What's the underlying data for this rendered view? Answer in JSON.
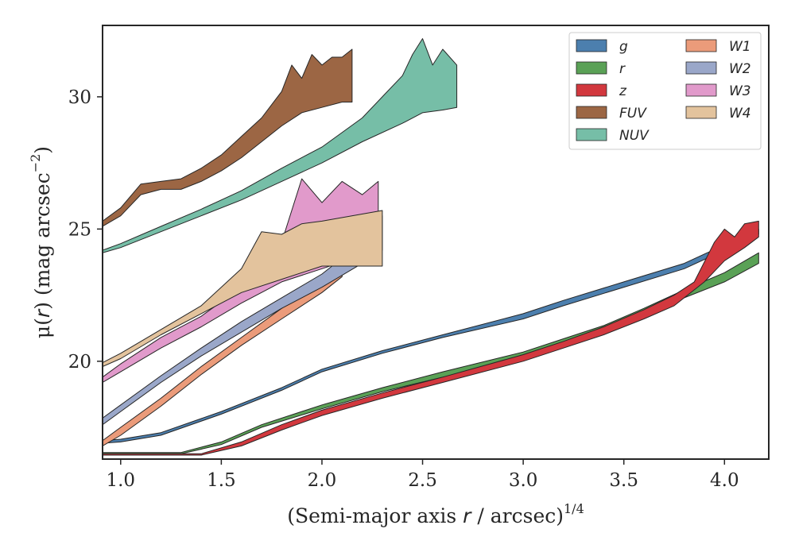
{
  "chart_data": {
    "type": "area",
    "xlabel_prefix": "(Semi-major axis ",
    "xlabel_var": "r",
    "xlabel_suffix": " / arcsec)",
    "xlabel_sup": "1/4",
    "ylabel_prefix": "μ(",
    "ylabel_var": "r",
    "ylabel_suffix": ") (mag arcsec",
    "ylabel_sup": "−2",
    "ylabel_close": ")",
    "xlim": [
      0.91,
      4.22
    ],
    "ylim": [
      32.7,
      16.3
    ],
    "xticks": [
      1.0,
      1.5,
      2.0,
      2.5,
      3.0,
      3.5,
      4.0
    ],
    "xtick_labels": [
      "1.0",
      "1.5",
      "2.0",
      "2.5",
      "3.0",
      "3.5",
      "4.0"
    ],
    "yticks": [
      20,
      25,
      30
    ],
    "ytick_labels": [
      "20",
      "25",
      "30"
    ],
    "legend_position": "top-right",
    "legend_columns": 2,
    "series": [
      {
        "name": "g",
        "color": "#4c7fae",
        "upper": [
          [
            0.91,
            16.9
          ],
          [
            1.0,
            16.95
          ],
          [
            1.2,
            17.2
          ],
          [
            1.5,
            18.0
          ],
          [
            1.8,
            18.9
          ],
          [
            2.0,
            19.6
          ],
          [
            2.3,
            20.3
          ],
          [
            2.6,
            20.9
          ],
          [
            3.0,
            21.6
          ],
          [
            3.2,
            22.1
          ],
          [
            3.5,
            22.8
          ],
          [
            3.8,
            23.5
          ],
          [
            4.0,
            24.2
          ],
          [
            4.1,
            24.6
          ],
          [
            4.17,
            24.8
          ]
        ],
        "lower": [
          [
            0.91,
            17.0
          ],
          [
            1.0,
            17.05
          ],
          [
            1.2,
            17.3
          ],
          [
            1.5,
            18.1
          ],
          [
            1.8,
            19.0
          ],
          [
            2.0,
            19.7
          ],
          [
            2.3,
            20.4
          ],
          [
            2.6,
            21.0
          ],
          [
            3.0,
            21.8
          ],
          [
            3.2,
            22.3
          ],
          [
            3.5,
            23.0
          ],
          [
            3.8,
            23.7
          ],
          [
            4.0,
            24.4
          ],
          [
            4.1,
            24.85
          ],
          [
            4.17,
            25.0
          ]
        ]
      },
      {
        "name": "r",
        "color": "#5aa156",
        "upper": [
          [
            0.91,
            16.5
          ],
          [
            1.3,
            16.5
          ],
          [
            1.5,
            16.85
          ],
          [
            1.7,
            17.5
          ],
          [
            2.0,
            18.2
          ],
          [
            2.3,
            18.85
          ],
          [
            2.6,
            19.4
          ],
          [
            3.0,
            20.1
          ],
          [
            3.2,
            20.6
          ],
          [
            3.4,
            21.1
          ],
          [
            3.6,
            21.7
          ],
          [
            3.8,
            22.4
          ],
          [
            4.0,
            23.0
          ],
          [
            4.17,
            23.7
          ]
        ],
        "lower": [
          [
            0.91,
            16.55
          ],
          [
            1.3,
            16.55
          ],
          [
            1.5,
            16.95
          ],
          [
            1.7,
            17.6
          ],
          [
            2.0,
            18.35
          ],
          [
            2.3,
            19.0
          ],
          [
            2.6,
            19.6
          ],
          [
            3.0,
            20.35
          ],
          [
            3.2,
            20.85
          ],
          [
            3.4,
            21.35
          ],
          [
            3.6,
            22.0
          ],
          [
            3.8,
            22.7
          ],
          [
            4.0,
            23.35
          ],
          [
            4.17,
            24.1
          ]
        ]
      },
      {
        "name": "z",
        "color": "#d2383e",
        "upper": [
          [
            0.91,
            16.45
          ],
          [
            1.4,
            16.45
          ],
          [
            1.6,
            16.8
          ],
          [
            1.8,
            17.4
          ],
          [
            2.0,
            17.95
          ],
          [
            2.3,
            18.6
          ],
          [
            2.6,
            19.2
          ],
          [
            3.0,
            20.0
          ],
          [
            3.2,
            20.5
          ],
          [
            3.4,
            21.0
          ],
          [
            3.6,
            21.6
          ],
          [
            3.75,
            22.1
          ],
          [
            3.9,
            23.0
          ],
          [
            4.0,
            23.8
          ],
          [
            4.1,
            24.3
          ],
          [
            4.17,
            24.7
          ]
        ],
        "lower": [
          [
            0.91,
            16.5
          ],
          [
            1.4,
            16.5
          ],
          [
            1.6,
            16.95
          ],
          [
            1.8,
            17.6
          ],
          [
            2.0,
            18.15
          ],
          [
            2.3,
            18.8
          ],
          [
            2.6,
            19.4
          ],
          [
            3.0,
            20.25
          ],
          [
            3.2,
            20.75
          ],
          [
            3.4,
            21.3
          ],
          [
            3.6,
            21.95
          ],
          [
            3.75,
            22.5
          ],
          [
            3.85,
            23.0
          ],
          [
            3.95,
            24.5
          ],
          [
            4.0,
            25.0
          ],
          [
            4.05,
            24.7
          ],
          [
            4.1,
            25.2
          ],
          [
            4.17,
            25.3
          ]
        ]
      },
      {
        "name": "FUV",
        "color": "#9c6644",
        "upper": [
          [
            0.91,
            25.1
          ],
          [
            1.0,
            25.5
          ],
          [
            1.1,
            26.3
          ],
          [
            1.2,
            26.5
          ],
          [
            1.3,
            26.5
          ],
          [
            1.4,
            26.8
          ],
          [
            1.5,
            27.2
          ],
          [
            1.6,
            27.7
          ],
          [
            1.7,
            28.3
          ],
          [
            1.8,
            28.9
          ],
          [
            1.9,
            29.4
          ],
          [
            2.0,
            29.6
          ],
          [
            2.1,
            29.8
          ],
          [
            2.15,
            29.8
          ]
        ],
        "lower": [
          [
            0.91,
            25.3
          ],
          [
            1.0,
            25.8
          ],
          [
            1.1,
            26.7
          ],
          [
            1.2,
            26.8
          ],
          [
            1.3,
            26.9
          ],
          [
            1.4,
            27.3
          ],
          [
            1.5,
            27.8
          ],
          [
            1.6,
            28.5
          ],
          [
            1.7,
            29.2
          ],
          [
            1.8,
            30.2
          ],
          [
            1.85,
            31.2
          ],
          [
            1.9,
            30.7
          ],
          [
            1.95,
            31.6
          ],
          [
            2.0,
            31.2
          ],
          [
            2.05,
            31.5
          ],
          [
            2.1,
            31.5
          ],
          [
            2.15,
            31.8
          ]
        ]
      },
      {
        "name": "NUV",
        "color": "#76bea7",
        "upper": [
          [
            0.91,
            24.1
          ],
          [
            1.0,
            24.3
          ],
          [
            1.2,
            24.9
          ],
          [
            1.4,
            25.5
          ],
          [
            1.6,
            26.1
          ],
          [
            1.8,
            26.8
          ],
          [
            2.0,
            27.5
          ],
          [
            2.2,
            28.3
          ],
          [
            2.4,
            29.0
          ],
          [
            2.5,
            29.4
          ],
          [
            2.6,
            29.5
          ],
          [
            2.67,
            29.6
          ]
        ],
        "lower": [
          [
            0.91,
            24.2
          ],
          [
            1.0,
            24.45
          ],
          [
            1.2,
            25.1
          ],
          [
            1.4,
            25.75
          ],
          [
            1.6,
            26.45
          ],
          [
            1.8,
            27.3
          ],
          [
            2.0,
            28.1
          ],
          [
            2.2,
            29.2
          ],
          [
            2.3,
            30.0
          ],
          [
            2.4,
            30.8
          ],
          [
            2.45,
            31.6
          ],
          [
            2.5,
            32.2
          ],
          [
            2.55,
            31.2
          ],
          [
            2.6,
            31.8
          ],
          [
            2.67,
            31.2
          ]
        ]
      },
      {
        "name": "W1",
        "color": "#eb9b7a",
        "upper": [
          [
            0.91,
            16.8
          ],
          [
            1.0,
            17.2
          ],
          [
            1.2,
            18.3
          ],
          [
            1.4,
            19.5
          ],
          [
            1.6,
            20.6
          ],
          [
            1.8,
            21.6
          ],
          [
            2.0,
            22.6
          ],
          [
            2.1,
            23.2
          ]
        ],
        "lower": [
          [
            0.91,
            17.0
          ],
          [
            1.0,
            17.5
          ],
          [
            1.2,
            18.6
          ],
          [
            1.4,
            19.8
          ],
          [
            1.6,
            20.9
          ],
          [
            1.8,
            22.0
          ],
          [
            2.0,
            23.1
          ],
          [
            2.1,
            23.6
          ]
        ]
      },
      {
        "name": "W2",
        "color": "#9aa7c9",
        "upper": [
          [
            0.91,
            17.6
          ],
          [
            1.0,
            18.1
          ],
          [
            1.2,
            19.2
          ],
          [
            1.4,
            20.2
          ],
          [
            1.6,
            21.1
          ],
          [
            1.8,
            22.0
          ],
          [
            2.0,
            22.8
          ],
          [
            2.2,
            23.7
          ],
          [
            2.3,
            24.2
          ]
        ],
        "lower": [
          [
            0.91,
            17.85
          ],
          [
            1.0,
            18.35
          ],
          [
            1.2,
            19.45
          ],
          [
            1.4,
            20.5
          ],
          [
            1.6,
            21.5
          ],
          [
            1.8,
            22.4
          ],
          [
            2.0,
            23.3
          ],
          [
            2.2,
            24.5
          ],
          [
            2.3,
            25.5
          ]
        ]
      },
      {
        "name": "W3",
        "color": "#e19acb",
        "upper": [
          [
            0.91,
            19.2
          ],
          [
            1.0,
            19.6
          ],
          [
            1.2,
            20.5
          ],
          [
            1.4,
            21.3
          ],
          [
            1.6,
            22.2
          ],
          [
            1.8,
            23.0
          ],
          [
            2.0,
            23.5
          ],
          [
            2.2,
            24.0
          ],
          [
            2.28,
            24.2
          ]
        ],
        "lower": [
          [
            0.91,
            19.4
          ],
          [
            1.0,
            19.9
          ],
          [
            1.2,
            20.9
          ],
          [
            1.4,
            21.7
          ],
          [
            1.6,
            22.8
          ],
          [
            1.8,
            24.5
          ],
          [
            1.9,
            26.9
          ],
          [
            2.0,
            26.0
          ],
          [
            2.1,
            26.8
          ],
          [
            2.2,
            26.3
          ],
          [
            2.28,
            26.8
          ]
        ]
      },
      {
        "name": "W4",
        "color": "#e3c39d",
        "upper": [
          [
            0.91,
            19.8
          ],
          [
            1.0,
            20.1
          ],
          [
            1.2,
            21.0
          ],
          [
            1.4,
            21.8
          ],
          [
            1.6,
            22.6
          ],
          [
            1.8,
            23.1
          ],
          [
            2.0,
            23.6
          ],
          [
            2.3,
            23.6
          ]
        ],
        "lower": [
          [
            0.91,
            19.95
          ],
          [
            1.0,
            20.3
          ],
          [
            1.2,
            21.2
          ],
          [
            1.4,
            22.1
          ],
          [
            1.6,
            23.5
          ],
          [
            1.7,
            24.9
          ],
          [
            1.8,
            24.8
          ],
          [
            1.9,
            25.2
          ],
          [
            2.0,
            25.3
          ],
          [
            2.3,
            25.7
          ]
        ]
      }
    ]
  }
}
